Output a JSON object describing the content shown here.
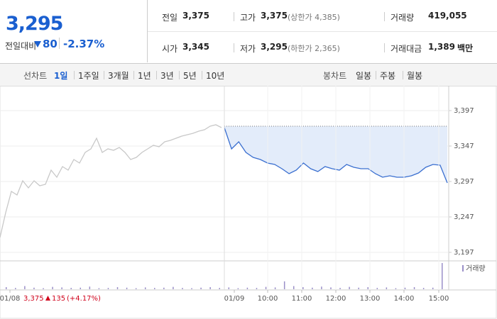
{
  "quote": {
    "price": "3,295",
    "change_label": "전일대비",
    "change": "80",
    "change_rate": "-2.37%"
  },
  "stats": [
    {
      "label": "전일",
      "value": "3,375"
    },
    {
      "label": "고가",
      "value": "3,375",
      "note": "(상한가 4,385)"
    },
    {
      "label": "거래량",
      "value": "419,055"
    },
    {
      "label": "시가",
      "value": "3,345"
    },
    {
      "label": "저가",
      "value": "3,295",
      "note": "(하한가 2,365)"
    },
    {
      "label": "거래대금",
      "value": "1,389",
      "unit": "백만"
    }
  ],
  "tabs": {
    "line_label": "선차트",
    "line_periods": [
      "1일",
      "1주일",
      "3개월",
      "1년",
      "3년",
      "5년",
      "10년"
    ],
    "candle_label": "봉차트",
    "candle_periods": [
      "일봉",
      "주봉",
      "월봉"
    ]
  },
  "chart_data": {
    "type": "line",
    "series": [
      {
        "color": "#c8c8c8",
        "values": [
          3218,
          3253,
          3283,
          3278,
          3298,
          3288,
          3298,
          3291,
          3293,
          3313,
          3303,
          3318,
          3313,
          3328,
          3323,
          3338,
          3343,
          3358,
          3338,
          3343,
          3341,
          3345,
          3338,
          3328,
          3331,
          3338,
          3343,
          3348,
          3346,
          3353,
          3355,
          3358,
          3361,
          3363,
          3365,
          3368,
          3370,
          3375,
          3377,
          3373
        ]
      },
      {
        "color": "#3a6fd0",
        "fill": "#e3ecfa",
        "values": [
          3373,
          3343,
          3353,
          3338,
          3331,
          3328,
          3323,
          3321,
          3315,
          3308,
          3313,
          3323,
          3315,
          3311,
          3318,
          3315,
          3313,
          3321,
          3317,
          3315,
          3315,
          3308,
          3303,
          3305,
          3303,
          3303,
          3305,
          3309,
          3317,
          3321,
          3320,
          3295
        ]
      }
    ],
    "reference_line": 3375,
    "ylim": [
      3187,
      3428
    ],
    "yticks": [
      {
        "value": 3397,
        "label": "3,397"
      },
      {
        "value": 3347,
        "label": "3,347"
      },
      {
        "value": 3297,
        "label": "3,297"
      },
      {
        "value": 3247,
        "label": "3,247"
      },
      {
        "value": 3197,
        "label": "3,197"
      }
    ],
    "xticks": [
      "01/08",
      "01/09",
      "10:00",
      "11:00",
      "12:00",
      "13:00",
      "14:00",
      "15:00"
    ],
    "prev_day": {
      "close": "3,375",
      "change": "135",
      "rate": "(+4.17%)"
    },
    "volume": {
      "name": "거래량",
      "color": "#9a8fc8",
      "ylim": [
        0,
        100
      ],
      "values": [
        8,
        5,
        12,
        6,
        4,
        9,
        7,
        5,
        6,
        10,
        4,
        5,
        8,
        6,
        4,
        7,
        5,
        6,
        9,
        5,
        4,
        6,
        8,
        5,
        7,
        4,
        6,
        5,
        9,
        7,
        30,
        12,
        8,
        6,
        10,
        7,
        5,
        9,
        6,
        8,
        5,
        7,
        4,
        6,
        8,
        5,
        6,
        100
      ]
    }
  }
}
